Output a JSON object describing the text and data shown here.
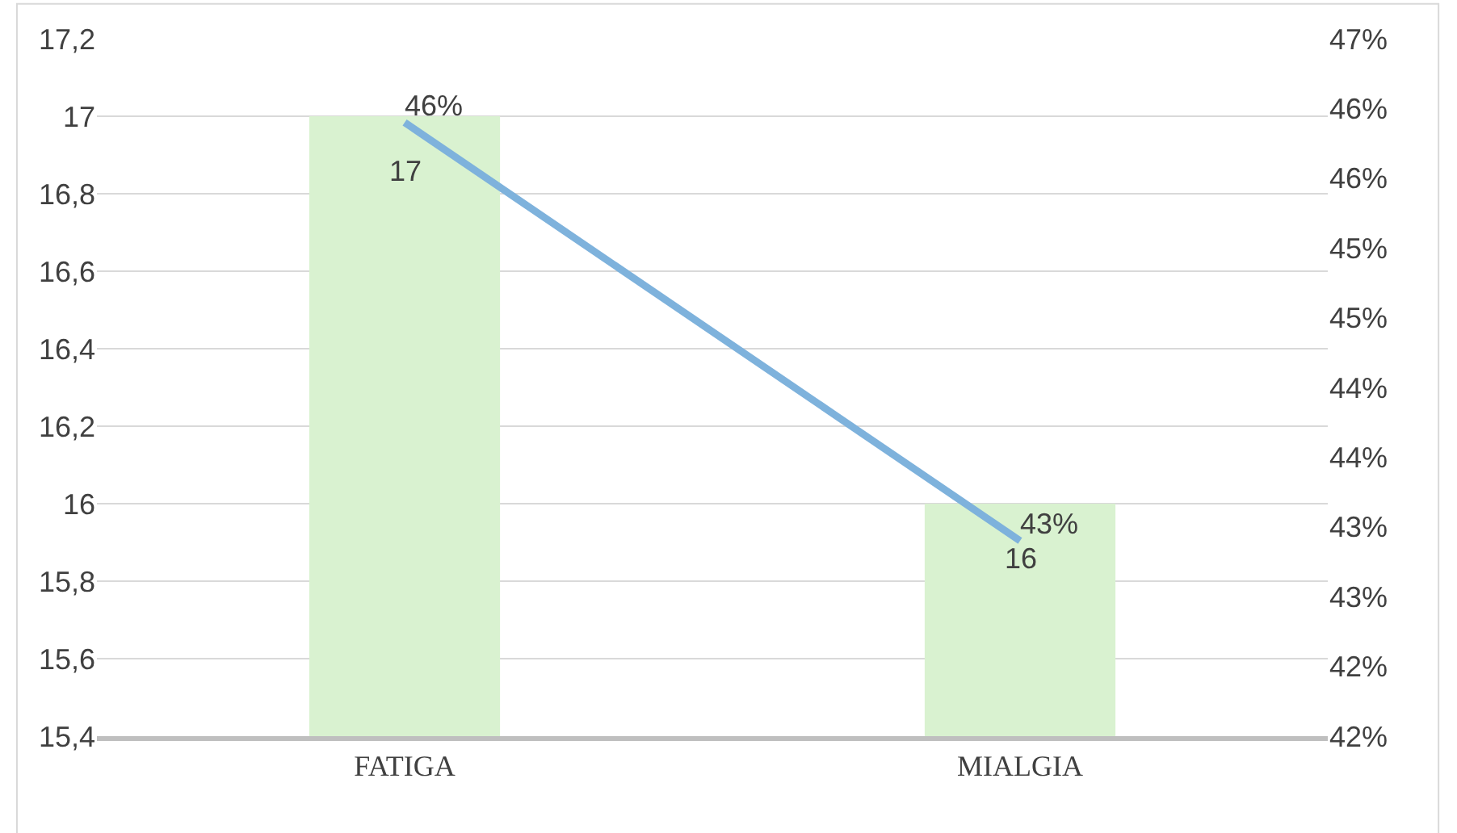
{
  "chart_data": {
    "type": "bar",
    "categories": [
      "FATIGA",
      "MIALGIA"
    ],
    "series": [
      {
        "color": "#d9f2d0",
        "values": [
          17,
          16
        ],
        "data_labels": true
      },
      {
        "type": "line",
        "axis": "y2",
        "color": "#7eb2dc",
        "values": [
          0.464,
          0.434
        ],
        "value_labels": [
          "46%",
          "43%"
        ]
      }
    ],
    "ylim": [
      15.4,
      17.2
    ],
    "yticks": [
      {
        "value": 15.4,
        "label": "15,4"
      },
      {
        "value": 15.6,
        "label": "15,6"
      },
      {
        "value": 15.8,
        "label": "15,8"
      },
      16,
      {
        "value": 16.2,
        "label": "16,2"
      },
      {
        "value": 16.4,
        "label": "16,4"
      },
      {
        "value": 16.6,
        "label": "16,6"
      },
      {
        "value": 16.8,
        "label": "16,8"
      },
      17,
      {
        "value": 17.2,
        "label": "17,2"
      }
    ],
    "y2lim": [
      0.42,
      0.47
    ],
    "y2ticks": [
      {
        "value": 0.42,
        "label": "42%"
      },
      {
        "value": 0.425,
        "label": "42%"
      },
      {
        "value": 0.43,
        "label": "43%"
      },
      {
        "value": 0.435,
        "label": "43%"
      },
      {
        "value": 0.44,
        "label": "44%"
      },
      {
        "value": 0.445,
        "label": "44%"
      },
      {
        "value": 0.45,
        "label": "45%"
      },
      {
        "value": 0.455,
        "label": "45%"
      },
      {
        "value": 0.46,
        "label": "46%"
      },
      {
        "value": 0.465,
        "label": "46%"
      },
      {
        "value": 0.47,
        "label": "47%"
      }
    ],
    "grid": "y"
  }
}
